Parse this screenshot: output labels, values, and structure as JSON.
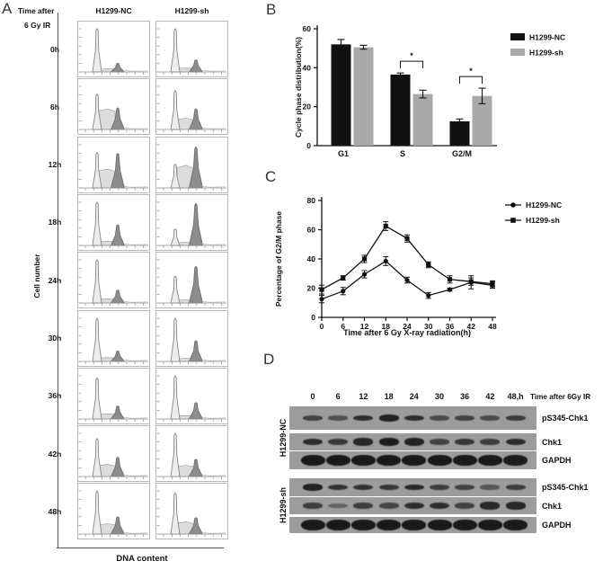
{
  "panel_labels": {
    "a": "A",
    "b": "B",
    "c": "C",
    "d": "D"
  },
  "panel_a": {
    "time_axis_label_line1": "Time after",
    "time_axis_label_line2": "6 Gy IR",
    "columns": [
      "H1299-NC",
      "H1299-sh"
    ],
    "y_axis_label": "Cell number",
    "x_axis_label": "DNA content",
    "rows": [
      {
        "time": "0h",
        "nc": {
          "g1": 1.0,
          "s": 0.07,
          "g2": 0.2
        },
        "sh": {
          "g1": 1.0,
          "s": 0.09,
          "g2": 0.28
        }
      },
      {
        "time": "6h",
        "nc": {
          "g1": 0.82,
          "s": 0.48,
          "g2": 0.5
        },
        "sh": {
          "g1": 0.9,
          "s": 0.26,
          "g2": 0.48
        }
      },
      {
        "time": "12h",
        "nc": {
          "g1": 0.82,
          "s": 0.44,
          "g2": 0.8
        },
        "sh": {
          "g1": 0.55,
          "s": 0.52,
          "g2": 0.95
        }
      },
      {
        "time": "18h",
        "nc": {
          "g1": 1.0,
          "s": 0.1,
          "g2": 0.48
        },
        "sh": {
          "g1": 0.38,
          "s": 0.07,
          "g2": 0.97
        }
      },
      {
        "time": "24h",
        "nc": {
          "g1": 1.0,
          "s": 0.1,
          "g2": 0.3
        },
        "sh": {
          "g1": 0.62,
          "s": 0.07,
          "g2": 0.85
        }
      },
      {
        "time": "30h",
        "nc": {
          "g1": 1.0,
          "s": 0.09,
          "g2": 0.24
        },
        "sh": {
          "g1": 1.0,
          "s": 0.07,
          "g2": 0.48
        }
      },
      {
        "time": "36h",
        "nc": {
          "g1": 0.95,
          "s": 0.12,
          "g2": 0.3
        },
        "sh": {
          "g1": 1.0,
          "s": 0.08,
          "g2": 0.38
        }
      },
      {
        "time": "42h",
        "nc": {
          "g1": 0.88,
          "s": 0.28,
          "g2": 0.45
        },
        "sh": {
          "g1": 1.0,
          "s": 0.26,
          "g2": 0.4
        }
      },
      {
        "time": "48h",
        "nc": {
          "g1": 1.0,
          "s": 0.24,
          "g2": 0.4
        },
        "sh": {
          "g1": 0.95,
          "s": 0.28,
          "g2": 0.38
        }
      }
    ]
  },
  "chart_data": [
    {
      "id": "panel_b",
      "type": "bar",
      "title": "",
      "categories": [
        "G1",
        "S",
        "G2/M"
      ],
      "series": [
        {
          "name": "H1299-NC",
          "color": "#111111",
          "values": [
            52,
            36.5,
            12.5
          ],
          "errors": [
            2.5,
            0.8,
            1.2
          ]
        },
        {
          "name": "H1299-sh",
          "color": "#a9a9a9",
          "values": [
            50.5,
            26.5,
            25.5
          ],
          "errors": [
            1.0,
            2.0,
            4.0
          ]
        }
      ],
      "xlabel": "",
      "ylabel": "Cycle phase distribution(%)",
      "ylim": [
        0,
        60
      ],
      "yticks": [
        0,
        20,
        40,
        60
      ],
      "significance": [
        {
          "category": "S",
          "label": "*"
        },
        {
          "category": "G2/M",
          "label": "*"
        }
      ],
      "legend_position": "right",
      "grid": false
    },
    {
      "id": "panel_c",
      "type": "line",
      "title": "",
      "x": [
        0,
        6,
        12,
        18,
        24,
        30,
        36,
        42,
        48
      ],
      "series": [
        {
          "name": "H1299-NC",
          "marker": "circle",
          "color": "#111111",
          "values": [
            12.5,
            18,
            29.5,
            38.5,
            25.5,
            15,
            19,
            24,
            22
          ],
          "errors": [
            2.5,
            2.5,
            2.5,
            3,
            2,
            2,
            1,
            4.5,
            2
          ]
        },
        {
          "name": "H1299-sh",
          "marker": "square",
          "color": "#111111",
          "values": [
            19,
            27,
            40,
            62.5,
            54,
            36,
            26,
            24.5,
            23
          ],
          "errors": [
            3,
            1.5,
            2.5,
            3,
            2.5,
            2,
            2.5,
            2.5,
            2
          ]
        }
      ],
      "xlabel": "Time after 6 Gy X-ray radiation(h)",
      "ylabel": "Percentage of G2/M phase",
      "ylim": [
        0,
        80
      ],
      "yticks": [
        0,
        20,
        40,
        60,
        80
      ],
      "legend_position": "right",
      "grid": false
    }
  ],
  "panel_d": {
    "lanes": [
      "0",
      "6",
      "12",
      "18",
      "24",
      "30",
      "36",
      "42",
      "48,h"
    ],
    "lane_note": "Time after 6Gy IR",
    "groups": [
      {
        "name": "H1299-NC",
        "rows": [
          {
            "label": "pS345-Chk1",
            "bands": [
              0.55,
              0.4,
              0.75,
              0.85,
              0.75,
              0.45,
              0.55,
              0.45,
              0.6
            ]
          },
          {
            "label": "Chk1",
            "bands": [
              0.75,
              0.65,
              0.8,
              0.9,
              0.85,
              0.55,
              0.65,
              0.6,
              0.75
            ]
          },
          {
            "label": "GAPDH",
            "bands": [
              0.95,
              0.95,
              0.95,
              0.95,
              0.95,
              0.95,
              0.95,
              0.95,
              0.9
            ]
          }
        ]
      },
      {
        "name": "H1299-sh",
        "rows": [
          {
            "label": "pS345-Chk1",
            "bands": [
              0.85,
              0.7,
              0.7,
              0.65,
              0.8,
              0.6,
              0.55,
              0.35,
              0.6
            ]
          },
          {
            "label": "Chk1",
            "bands": [
              0.6,
              0.2,
              0.6,
              0.5,
              0.75,
              0.75,
              0.55,
              0.8,
              0.8
            ]
          },
          {
            "label": "GAPDH",
            "bands": [
              0.95,
              0.95,
              0.95,
              0.95,
              0.95,
              0.95,
              0.95,
              0.95,
              0.95
            ]
          }
        ]
      }
    ]
  }
}
